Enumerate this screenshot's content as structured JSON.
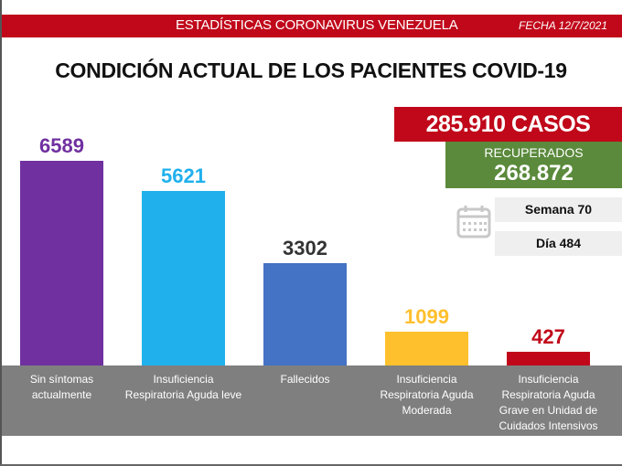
{
  "header": {
    "title": "ESTADÍSTICAS CORONAVIRUS VENEZUELA",
    "date": "FECHA 12/7/2021"
  },
  "summary": {
    "cases": "285.910 CASOS",
    "recovered_label": "RECUPERADOS",
    "recovered_value": "268.872",
    "week": "Semana 70",
    "day": "Día 484",
    "calendar_icon": "calendar-icon"
  },
  "colors": {
    "header_red": "#c0081a",
    "recovered_green": "#5b8a3c",
    "band_gray": "#7f7f7f"
  },
  "chart_data": {
    "type": "bar",
    "title": "CONDICIÓN ACTUAL DE LOS PACIENTES COVID-19",
    "xlabel": "",
    "ylabel": "",
    "ylim": [
      0,
      7000
    ],
    "grid": false,
    "categories": [
      "Sin síntomas actualmente",
      "Insuficiencia Respiratoria Aguda leve",
      "Fallecidos",
      "Insuficiencia Respiratoria Aguda Moderada",
      "Insuficiencia Respiratoria Aguda Grave en Unidad de Cuidados Intensivos"
    ],
    "values": [
      6589,
      5621,
      3302,
      1099,
      427
    ],
    "bar_colors": [
      "#7030a0",
      "#20b0ec",
      "#4472c4",
      "#ffc02e",
      "#c0081a"
    ],
    "label_colors": [
      "#7030a0",
      "#20b0ec",
      "#333333",
      "#ffc02e",
      "#c0081a"
    ],
    "data_labels": [
      "6589",
      "5621",
      "3302",
      "1099",
      "427"
    ]
  }
}
